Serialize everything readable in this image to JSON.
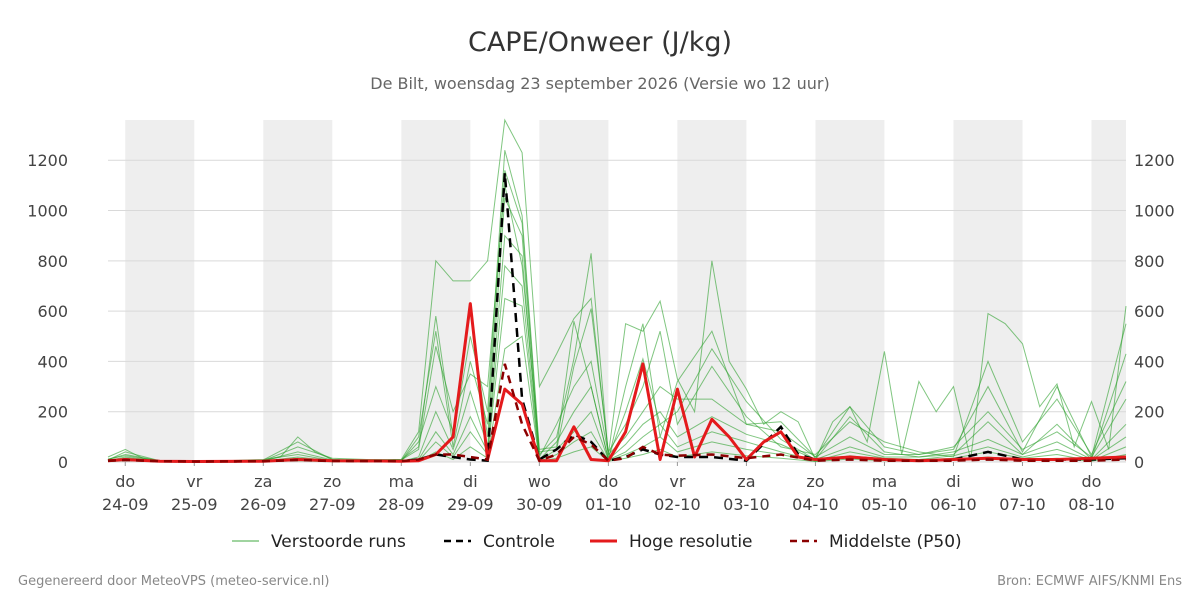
{
  "chart_data": {
    "type": "line",
    "title": "CAPE/Onweer (J/kg)",
    "subtitle": "De Bilt, woensdag 23 september 2026 (Versie wo 12 uur)",
    "ylim": [
      0,
      1360
    ],
    "yticks": [
      0,
      200,
      400,
      600,
      800,
      1000,
      1200
    ],
    "xlim": [
      -0.25,
      14.5
    ],
    "x_ticks": [
      {
        "pos": 0,
        "day": "do",
        "date": "24-09"
      },
      {
        "pos": 1,
        "day": "vr",
        "date": "25-09"
      },
      {
        "pos": 2,
        "day": "za",
        "date": "26-09"
      },
      {
        "pos": 3,
        "day": "zo",
        "date": "27-09"
      },
      {
        "pos": 4,
        "day": "ma",
        "date": "28-09"
      },
      {
        "pos": 5,
        "day": "di",
        "date": "29-09"
      },
      {
        "pos": 6,
        "day": "wo",
        "date": "30-09"
      },
      {
        "pos": 7,
        "day": "do",
        "date": "01-10"
      },
      {
        "pos": 8,
        "day": "vr",
        "date": "02-10"
      },
      {
        "pos": 9,
        "day": "za",
        "date": "03-10"
      },
      {
        "pos": 10,
        "day": "zo",
        "date": "04-10"
      },
      {
        "pos": 11,
        "day": "ma",
        "date": "05-10"
      },
      {
        "pos": 12,
        "day": "di",
        "date": "06-10"
      },
      {
        "pos": 13,
        "day": "wo",
        "date": "07-10"
      },
      {
        "pos": 14,
        "day": "do",
        "date": "08-10"
      }
    ],
    "grid": true,
    "legend_position": "bottom",
    "colors": {
      "ensemble": "#2ca02c",
      "control": "#000000",
      "high_res": "#e41a1c",
      "median": "#8b0000",
      "weekend_shade": "#eeeeee"
    },
    "series": [
      {
        "name": "Verstoorde runs",
        "style": "thin",
        "x": [
          -0.25,
          0,
          0.25,
          0.5,
          1,
          1.5,
          2,
          2.25,
          2.5,
          2.75,
          3,
          3.5,
          4,
          4.25,
          4.5,
          4.75,
          5,
          5.25,
          5.5,
          5.75,
          6,
          6.25,
          6.5,
          6.75,
          7,
          7.25,
          7.5,
          7.75,
          8,
          8.25,
          8.5,
          8.75,
          9,
          9.25,
          9.5,
          9.75,
          10,
          10.25,
          10.5,
          10.75,
          11,
          11.25,
          11.5,
          11.75,
          12,
          12.25,
          12.5,
          12.75,
          13,
          13.25,
          13.5,
          13.75,
          14,
          14.25,
          14.5
        ],
        "y": [
          20,
          50,
          15,
          3,
          2,
          3,
          5,
          20,
          100,
          40,
          10,
          5,
          10,
          120,
          800,
          720,
          720,
          800,
          1360,
          1230,
          300,
          430,
          570,
          650,
          30,
          550,
          520,
          640,
          330,
          200,
          800,
          400,
          290,
          150,
          200,
          160,
          10,
          160,
          220,
          80,
          440,
          30,
          320,
          200,
          300,
          10,
          590,
          550,
          470,
          220,
          310,
          60,
          240,
          50,
          620
        ]
      },
      {
        "name": "Verstoorde runs",
        "style": "thin",
        "x": [
          -0.25,
          0,
          0.5,
          1,
          2,
          2.5,
          3,
          3.5,
          4,
          4.25,
          4.5,
          4.75,
          5,
          5.25,
          5.5,
          5.75,
          6,
          6.25,
          6.5,
          6.75,
          7,
          7.25,
          7.5,
          7.75,
          8,
          8.5,
          9,
          9.5,
          10,
          10.5,
          11,
          11.5,
          12,
          12.5,
          13,
          13.5,
          14,
          14.5
        ],
        "y": [
          10,
          30,
          5,
          2,
          5,
          60,
          15,
          10,
          10,
          60,
          580,
          100,
          500,
          200,
          1240,
          980,
          50,
          60,
          560,
          300,
          10,
          300,
          550,
          100,
          320,
          520,
          150,
          120,
          20,
          220,
          60,
          30,
          50,
          300,
          40,
          300,
          20,
          550
        ]
      },
      {
        "name": "Verstoorde runs",
        "style": "thin",
        "x": [
          -0.25,
          0,
          0.5,
          1,
          2,
          2.5,
          3,
          4,
          4.25,
          4.5,
          4.75,
          5,
          5.25,
          5.5,
          5.75,
          6,
          6.25,
          6.5,
          6.75,
          7,
          7.25,
          7.5,
          7.75,
          8,
          8.5,
          9,
          9.5,
          10,
          10.5,
          11,
          11.5,
          12,
          12.5,
          13,
          13.5,
          14,
          14.5
        ],
        "y": [
          5,
          20,
          3,
          1,
          10,
          30,
          5,
          5,
          100,
          520,
          60,
          400,
          150,
          1160,
          950,
          30,
          100,
          410,
          830,
          20,
          200,
          410,
          150,
          200,
          450,
          240,
          90,
          10,
          180,
          40,
          20,
          30,
          160,
          30,
          150,
          10,
          430
        ]
      },
      {
        "name": "Verstoorde runs",
        "style": "thin",
        "x": [
          -0.25,
          0,
          0.5,
          1,
          2,
          2.5,
          3,
          4,
          4.25,
          4.5,
          4.75,
          5,
          5.25,
          5.5,
          5.75,
          6,
          6.25,
          6.5,
          6.75,
          7,
          7.25,
          7.5,
          7.75,
          8,
          8.5,
          9,
          9.5,
          10,
          10.5,
          11,
          11.5,
          12,
          12.5,
          13,
          13.5,
          14,
          14.5
        ],
        "y": [
          8,
          40,
          5,
          2,
          8,
          80,
          10,
          8,
          50,
          460,
          200,
          350,
          300,
          1100,
          780,
          40,
          50,
          380,
          610,
          40,
          150,
          300,
          520,
          150,
          380,
          180,
          60,
          30,
          160,
          80,
          40,
          20,
          400,
          80,
          250,
          30,
          320
        ]
      },
      {
        "name": "Verstoorde runs",
        "style": "thin",
        "x": [
          -0.25,
          0,
          0.5,
          1,
          2,
          2.5,
          3,
          4,
          4.25,
          4.5,
          4.75,
          5,
          5.25,
          5.5,
          5.75,
          6,
          6.25,
          6.5,
          6.75,
          7,
          7.25,
          7.5,
          7.75,
          8,
          8.5,
          9,
          9.5,
          10,
          10.5,
          11,
          11.5,
          12,
          12.5,
          13,
          13.5,
          14,
          14.5
        ],
        "y": [
          12,
          25,
          5,
          1,
          5,
          40,
          8,
          5,
          80,
          300,
          120,
          600,
          100,
          1050,
          900,
          20,
          150,
          300,
          400,
          30,
          100,
          200,
          300,
          250,
          250,
          150,
          160,
          20,
          100,
          30,
          30,
          60,
          200,
          50,
          120,
          20,
          250
        ]
      },
      {
        "name": "Verstoorde runs",
        "style": "thin",
        "x": [
          -0.25,
          0,
          0.5,
          1,
          2,
          2.5,
          3,
          4,
          4.25,
          4.5,
          4.75,
          5,
          5.25,
          5.5,
          5.75,
          6,
          6.25,
          6.5,
          6.75,
          7,
          7.25,
          7.5,
          7.75,
          8,
          8.5,
          9,
          9.5,
          10,
          10.5,
          11,
          11.5,
          12,
          12.5,
          13,
          13.5,
          14,
          14.5
        ],
        "y": [
          6,
          15,
          3,
          1,
          3,
          20,
          4,
          3,
          20,
          200,
          50,
          280,
          60,
          900,
          820,
          10,
          80,
          200,
          300,
          10,
          70,
          150,
          200,
          100,
          180,
          110,
          70,
          10,
          60,
          20,
          20,
          40,
          90,
          30,
          80,
          10,
          150
        ]
      },
      {
        "name": "Verstoorde runs",
        "style": "thin",
        "x": [
          -0.25,
          0,
          0.5,
          1,
          2,
          2.5,
          3,
          4,
          4.25,
          4.5,
          4.75,
          5,
          5.25,
          5.5,
          5.75,
          6,
          6.25,
          6.5,
          6.75,
          7,
          7.25,
          7.5,
          7.75,
          8,
          8.5,
          9,
          9.5,
          10,
          10.5,
          11,
          11.5,
          12,
          12.5,
          13,
          13.5,
          14,
          14.5
        ],
        "y": [
          4,
          10,
          2,
          1,
          2,
          15,
          3,
          2,
          10,
          120,
          30,
          180,
          40,
          780,
          700,
          5,
          50,
          120,
          200,
          8,
          40,
          100,
          150,
          60,
          120,
          80,
          40,
          5,
          40,
          15,
          10,
          25,
          60,
          20,
          50,
          8,
          100
        ]
      },
      {
        "name": "Verstoorde runs",
        "style": "thin",
        "x": [
          -0.25,
          0,
          0.5,
          1,
          2,
          2.5,
          3,
          4,
          4.25,
          4.5,
          4.75,
          5,
          5.25,
          5.5,
          5.75,
          6,
          6.25,
          6.5,
          6.75,
          7,
          7.25,
          7.5,
          7.75,
          8,
          8.5,
          9,
          9.5,
          10,
          10.5,
          11,
          11.5,
          12,
          12.5,
          13,
          13.5,
          14,
          14.5
        ],
        "y": [
          3,
          8,
          2,
          1,
          2,
          10,
          2,
          2,
          5,
          80,
          20,
          120,
          30,
          650,
          620,
          3,
          30,
          80,
          120,
          5,
          30,
          60,
          100,
          40,
          80,
          50,
          30,
          3,
          25,
          10,
          8,
          15,
          40,
          15,
          30,
          5,
          60
        ]
      },
      {
        "name": "Verstoorde runs",
        "style": "thin",
        "x": [
          -0.25,
          0,
          0.5,
          1,
          2,
          2.5,
          3,
          4,
          4.25,
          4.5,
          4.75,
          5,
          5.25,
          5.5,
          5.75,
          6,
          6.25,
          6.5,
          6.75,
          7,
          7.25,
          7.5,
          7.75,
          8,
          8.5,
          9,
          9.5,
          10,
          10.5,
          11,
          11.5,
          12,
          12.5,
          13,
          13.5,
          14,
          14.5
        ],
        "y": [
          2,
          5,
          1,
          1,
          1,
          5,
          1,
          1,
          3,
          40,
          10,
          60,
          15,
          450,
          500,
          2,
          15,
          40,
          60,
          3,
          15,
          30,
          50,
          20,
          40,
          25,
          15,
          2,
          12,
          5,
          5,
          8,
          20,
          8,
          15,
          3,
          30
        ]
      },
      {
        "name": "Controle",
        "style": "control",
        "x": [
          -0.25,
          0,
          0.5,
          1,
          2,
          2.5,
          3,
          4,
          4.25,
          4.5,
          4.75,
          5,
          5.25,
          5.5,
          5.75,
          6,
          6.25,
          6.5,
          6.75,
          7,
          7.25,
          7.5,
          7.75,
          8,
          8.5,
          9,
          9.5,
          9.75,
          10,
          10.5,
          11,
          11.5,
          12,
          12.5,
          13,
          13.5,
          14,
          14.5
        ],
        "y": [
          5,
          10,
          3,
          2,
          3,
          10,
          5,
          3,
          10,
          30,
          20,
          10,
          5,
          1150,
          250,
          10,
          50,
          110,
          80,
          5,
          20,
          50,
          30,
          20,
          20,
          5,
          140,
          30,
          10,
          20,
          10,
          5,
          10,
          40,
          10,
          10,
          10,
          15
        ]
      },
      {
        "name": "Hoge resolutie",
        "style": "highres",
        "x": [
          -0.25,
          0,
          0.5,
          1,
          2,
          2.5,
          3,
          4,
          4.25,
          4.5,
          4.75,
          5,
          5.25,
          5.5,
          5.75,
          6,
          6.25,
          6.5,
          6.75,
          7,
          7.25,
          7.5,
          7.75,
          8,
          8.25,
          8.5,
          8.75,
          9,
          9.25,
          9.5,
          9.75,
          10,
          10.5,
          11,
          11.5,
          12,
          12.5,
          13,
          13.5,
          14,
          14.5
        ],
        "y": [
          5,
          10,
          3,
          2,
          3,
          10,
          5,
          3,
          5,
          30,
          100,
          630,
          10,
          290,
          230,
          5,
          5,
          140,
          10,
          5,
          120,
          390,
          10,
          290,
          20,
          170,
          100,
          10,
          80,
          120,
          20,
          10,
          20,
          10,
          5,
          10,
          15,
          10,
          10,
          15,
          20
        ]
      },
      {
        "name": "Middelste (P50)",
        "style": "median",
        "x": [
          -0.25,
          0,
          0.5,
          1,
          2,
          2.5,
          3,
          4,
          4.25,
          4.5,
          4.75,
          5,
          5.25,
          5.5,
          5.75,
          6,
          6.25,
          6.5,
          6.75,
          7,
          7.25,
          7.5,
          7.75,
          8,
          8.5,
          9,
          9.5,
          10,
          10.5,
          11,
          11.5,
          12,
          12.5,
          13,
          13.5,
          14,
          14.5
        ],
        "y": [
          5,
          8,
          3,
          2,
          3,
          8,
          4,
          3,
          10,
          30,
          30,
          20,
          10,
          390,
          150,
          5,
          30,
          100,
          70,
          5,
          15,
          60,
          30,
          25,
          30,
          15,
          30,
          5,
          10,
          5,
          5,
          5,
          10,
          5,
          5,
          5,
          10
        ]
      }
    ]
  },
  "legend": {
    "items": [
      {
        "label": "Verstoorde runs",
        "style": "thin"
      },
      {
        "label": "Controle",
        "style": "control"
      },
      {
        "label": "Hoge resolutie",
        "style": "highres"
      },
      {
        "label": "Middelste (P50)",
        "style": "median"
      }
    ]
  },
  "footer": {
    "left": "Gegenereerd door MeteoVPS (meteo-service.nl)",
    "right": "Bron: ECMWF AIFS/KNMI Ens"
  }
}
